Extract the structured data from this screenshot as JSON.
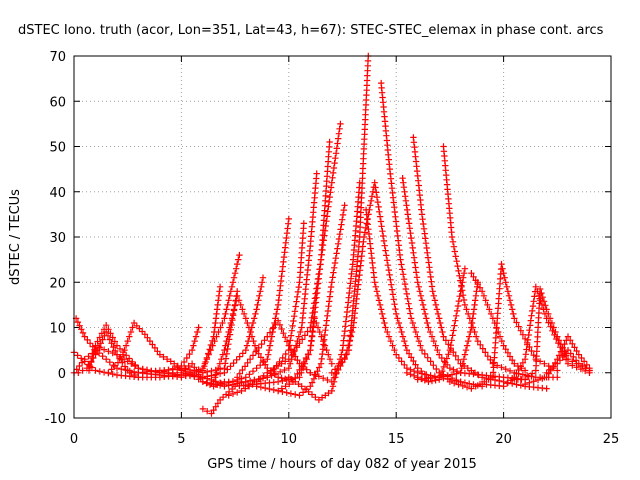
{
  "chart_data": {
    "type": "scatter",
    "title": "dSTEC Iono. truth (acor, Lon=351, Lat=43, h=67): STEC-STEC_elemax in phase cont. arcs",
    "xlabel": "GPS time / hours of day 082 of year 2015",
    "ylabel": "dSTEC  / TECUs",
    "xlim": [
      0,
      25
    ],
    "ylim": [
      -10,
      70
    ],
    "xticks": [
      "0",
      "5",
      "10",
      "15",
      "20",
      "25"
    ],
    "yticks": [
      "-10",
      "0",
      "10",
      "20",
      "30",
      "40",
      "50",
      "60",
      "70"
    ],
    "grid": true,
    "marker": "plus",
    "color": "#ff0000",
    "series": [
      {
        "x": [
          0.0,
          1.0,
          2.0,
          3.0,
          4.0,
          5.0,
          6.0,
          7.0,
          7.7
        ],
        "y": [
          4.5,
          0.5,
          -0.5,
          -1.0,
          -1.0,
          -0.5,
          1.0,
          12.0,
          26.0
        ]
      },
      {
        "x": [
          0.1,
          0.5,
          1.0,
          2.0,
          3.0,
          4.0,
          5.0,
          6.0,
          6.5,
          6.8
        ],
        "y": [
          12.0,
          8.0,
          5.0,
          1.0,
          0.0,
          -0.5,
          -1.0,
          0.5,
          8.0,
          19.0
        ]
      },
      {
        "x": [
          0.0,
          0.5,
          1.2,
          2.0,
          3.0,
          4.0,
          5.0,
          5.5,
          5.8
        ],
        "y": [
          0.0,
          3.0,
          5.5,
          4.0,
          1.0,
          0.0,
          1.5,
          5.0,
          10.0
        ]
      },
      {
        "x": [
          0.2,
          0.6,
          1.0,
          1.5,
          2.0,
          2.5,
          3.0
        ],
        "y": [
          0.0,
          1.0,
          4.0,
          9.0,
          4.0,
          0.5,
          -1.0
        ]
      },
      {
        "x": [
          0.7,
          1.0,
          1.5,
          2.0,
          3.0,
          4.0,
          5.0,
          6.0,
          7.0,
          8.0,
          8.5,
          8.8
        ],
        "y": [
          0.5,
          6.0,
          10.5,
          6.0,
          1.0,
          0.0,
          -0.5,
          -1.0,
          0.0,
          5.0,
          14.0,
          21.0
        ]
      },
      {
        "x": [
          1.6,
          2.2,
          2.8,
          3.3,
          4.0,
          5.0,
          6.0,
          7.0,
          7.6
        ],
        "y": [
          0.0,
          3.0,
          11.0,
          8.5,
          4.0,
          1.0,
          0.0,
          1.0,
          18.0
        ]
      },
      {
        "x": [
          3.0,
          4.0,
          5.0,
          6.0,
          7.0,
          8.0,
          9.0,
          10.0,
          10.5,
          10.7
        ],
        "y": [
          0.0,
          0.5,
          0.8,
          -2.0,
          -3.0,
          -2.0,
          -1.0,
          5.0,
          20.0,
          33.0
        ]
      },
      {
        "x": [
          4.0,
          5.0,
          6.0,
          7.0,
          8.0,
          9.0,
          9.5,
          10.0
        ],
        "y": [
          0.0,
          0.0,
          -1.0,
          -2.5,
          -1.0,
          3.0,
          15.0,
          34.0
        ]
      },
      {
        "x": [
          5.0,
          5.5,
          6.0,
          6.5,
          7.0,
          8.0,
          9.0,
          10.0,
          10.6,
          11.0,
          11.3
        ],
        "y": [
          0.5,
          2.0,
          -2.0,
          -3.0,
          -2.0,
          -2.0,
          -1.0,
          1.0,
          10.0,
          28.0,
          44.0
        ]
      },
      {
        "x": [
          6.0,
          6.4,
          6.8,
          7.5,
          8.5,
          9.5,
          10.5,
          11.0,
          11.5,
          11.9
        ],
        "y": [
          -8.0,
          -9.0,
          -6.0,
          -3.0,
          -2.5,
          -2.0,
          -1.0,
          5.0,
          25.0,
          51.0
        ]
      },
      {
        "x": [
          6.5,
          7.0,
          7.6,
          8.0,
          8.5,
          9.0,
          9.5,
          10.0
        ],
        "y": [
          -2.0,
          5.0,
          17.0,
          12.0,
          5.0,
          1.0,
          -1.0,
          -1.5
        ]
      },
      {
        "x": [
          7.2,
          7.8,
          8.5,
          9.0,
          10.0,
          11.0,
          11.5,
          12.0,
          12.4
        ],
        "y": [
          -5.0,
          -4.0,
          -2.0,
          0.0,
          3.0,
          10.0,
          25.0,
          42.0,
          55.0
        ]
      },
      {
        "x": [
          7.6,
          8.2,
          9.0,
          9.5,
          10.0,
          10.5,
          11.0
        ],
        "y": [
          -1.0,
          3.0,
          8.0,
          11.5,
          6.0,
          2.0,
          0.0
        ]
      },
      {
        "x": [
          8.5,
          9.5,
          10.5,
          11.0,
          11.5,
          12.0,
          12.6
        ],
        "y": [
          -3.0,
          -4.0,
          -5.0,
          -3.0,
          2.0,
          20.0,
          37.0
        ]
      },
      {
        "x": [
          9.5,
          10.2,
          11.0,
          11.2,
          11.6,
          12.0
        ],
        "y": [
          -4.0,
          -2.0,
          5.0,
          12.0,
          7.0,
          2.0
        ]
      },
      {
        "x": [
          10.0,
          10.6,
          11.4,
          12.0,
          12.5,
          13.0,
          13.3
        ],
        "y": [
          -1.0,
          -3.0,
          -6.0,
          -4.0,
          5.0,
          25.0,
          42.0
        ]
      },
      {
        "x": [
          11.0,
          12.0,
          12.8,
          13.3,
          13.7
        ],
        "y": [
          0.0,
          -2.0,
          5.0,
          30.0,
          70.0
        ]
      },
      {
        "x": [
          12.0,
          12.6,
          13.0,
          13.5,
          14.0,
          14.5,
          15.0,
          15.5,
          16.0,
          16.5
        ],
        "y": [
          0.0,
          3.0,
          10.0,
          30.0,
          42.0,
          27.0,
          13.0,
          5.0,
          1.0,
          -1.0
        ]
      },
      {
        "x": [
          13.6,
          14.0,
          14.5,
          15.0,
          15.5,
          16.0,
          17.0,
          18.0
        ],
        "y": [
          36.0,
          20.0,
          10.0,
          4.0,
          1.0,
          0.0,
          -1.0,
          -2.0
        ]
      },
      {
        "x": [
          14.3,
          14.7,
          15.2,
          15.7,
          16.2,
          17.0,
          18.0,
          19.0
        ],
        "y": [
          64.0,
          45.0,
          25.0,
          12.0,
          5.0,
          0.0,
          -2.0,
          -3.0
        ]
      },
      {
        "x": [
          15.3,
          15.6,
          16.0,
          16.5,
          17.0,
          17.5,
          18.0,
          19.0,
          20.0,
          21.0
        ],
        "y": [
          43.0,
          33.0,
          20.0,
          10.0,
          4.0,
          1.0,
          0.0,
          -0.5,
          -1.0,
          -1.5
        ]
      },
      {
        "x": [
          15.8,
          16.2,
          16.7,
          17.2,
          18.0,
          19.0,
          20.0,
          21.0,
          22.0
        ],
        "y": [
          52.0,
          35.0,
          18.0,
          8.0,
          2.0,
          -1.0,
          -2.0,
          -3.0,
          -3.5
        ]
      },
      {
        "x": [
          15.5,
          16.0,
          16.5,
          17.0,
          17.5,
          18.0,
          18.2
        ],
        "y": [
          0.0,
          -1.0,
          -2.0,
          -1.5,
          5.0,
          18.0,
          23.0
        ]
      },
      {
        "x": [
          16.0,
          17.0,
          18.0,
          18.5,
          18.8
        ],
        "y": [
          -1.5,
          -1.0,
          0.0,
          10.0,
          20.0
        ]
      },
      {
        "x": [
          17.2,
          17.6,
          18.2,
          18.8,
          19.5,
          20.5,
          21.5,
          22.5
        ],
        "y": [
          50.0,
          30.0,
          15.0,
          7.0,
          2.0,
          0.0,
          -1.0,
          -1.0
        ]
      },
      {
        "x": [
          18.5,
          19.0,
          19.5,
          20.0,
          20.5,
          21.0
        ],
        "y": [
          22.0,
          18.0,
          12.0,
          6.0,
          2.0,
          0.5
        ]
      },
      {
        "x": [
          17.5,
          18.5,
          19.5,
          19.9,
          20.5,
          21.5,
          22.5
        ],
        "y": [
          -2.0,
          -3.5,
          -1.0,
          24.0,
          12.0,
          3.0,
          0.5
        ]
      },
      {
        "x": [
          19.0,
          20.0,
          20.5,
          21.0,
          21.5,
          22.0,
          23.0,
          24.0
        ],
        "y": [
          -2.5,
          -3.0,
          -1.0,
          3.0,
          19.0,
          12.0,
          2.0,
          0.0
        ]
      },
      {
        "x": [
          20.5,
          21.0,
          21.5,
          21.7,
          22.0,
          22.5,
          23.0,
          24.0
        ],
        "y": [
          -1.5,
          -1.5,
          0.5,
          18.5,
          14.0,
          8.0,
          3.0,
          0.5
        ]
      },
      {
        "x": [
          21.0,
          22.0,
          22.5,
          23.0,
          23.5,
          24.0
        ],
        "y": [
          -2.5,
          -1.0,
          3.0,
          8.0,
          4.0,
          1.0
        ]
      },
      {
        "x": [
          22.0,
          22.5,
          23.0,
          23.5,
          24.0
        ],
        "y": [
          0.0,
          2.0,
          5.0,
          2.0,
          0.5
        ]
      }
    ]
  }
}
